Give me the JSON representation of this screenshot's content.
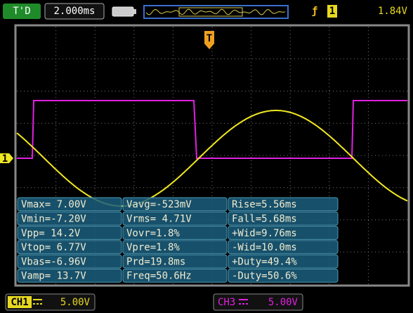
{
  "header": {
    "trigger_mode": "T'D",
    "timebase": "2.000ms",
    "trigger_source": "1",
    "trigger_level": "1.84V"
  },
  "markers": {
    "trigger": "T",
    "channel": "1"
  },
  "measurements": {
    "rows": [
      [
        "Vmax= 7.00V",
        "Vavg=-523mV",
        "Rise=5.56ms"
      ],
      [
        "Vmin=-7.20V",
        "Vrms= 4.71V",
        "Fall=5.68ms"
      ],
      [
        "Vpp= 14.2V",
        "Vovr=1.8%",
        "+Wid=9.76ms"
      ],
      [
        "Vtop= 6.77V",
        "Vpre=1.8%",
        "-Wid=10.0ms"
      ],
      [
        "Vbas=-6.96V",
        "Prd=19.8ms",
        "+Duty=49.4%"
      ],
      [
        "Vamp= 13.7V",
        "Freq=50.6Hz",
        "-Duty=50.6%"
      ]
    ]
  },
  "footer": {
    "ch1": {
      "label": "CH1",
      "scale": "5.00V"
    },
    "ch3": {
      "label": "CH3",
      "scale": "5.00V"
    }
  }
}
